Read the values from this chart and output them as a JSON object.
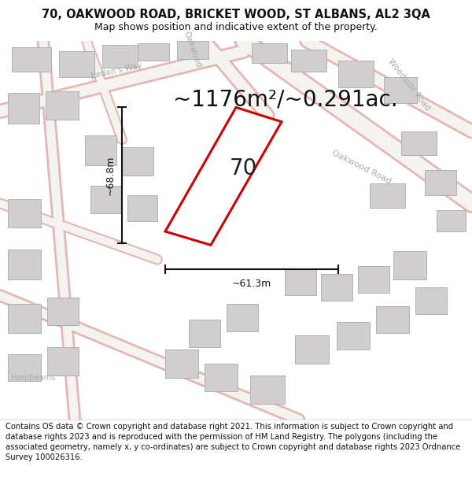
{
  "title_line1": "70, OAKWOOD ROAD, BRICKET WOOD, ST ALBANS, AL2 3QA",
  "title_line2": "Map shows position and indicative extent of the property.",
  "footer_text": "Contains OS data © Crown copyright and database right 2021. This information is subject to Crown copyright and database rights 2023 and is reproduced with the permission of HM Land Registry. The polygons (including the associated geometry, namely x, y co-ordinates) are subject to Crown copyright and database rights 2023 Ordnance Survey 100026316.",
  "area_label": "~1176m²/~0.291ac.",
  "property_number": "70",
  "dim_width": "~61.3m",
  "dim_height": "~68.8m",
  "map_bg": "#f2f0ed",
  "road_fill": "#ffffff",
  "road_edge": "#d4a0a0",
  "building_fill": "#d0cece",
  "building_edge": "#aaaaaa",
  "prop_fill": "#ffffff",
  "prop_edge": "#cc0000",
  "dim_color": "#111111",
  "text_color": "#111111",
  "label_color": "#999999",
  "title_fontsize": 10.5,
  "subtitle_fontsize": 9,
  "footer_fontsize": 7.2,
  "area_fontsize": 20,
  "number_fontsize": 20,
  "title_bg": "#ffffff",
  "footer_bg": "#ffffff"
}
